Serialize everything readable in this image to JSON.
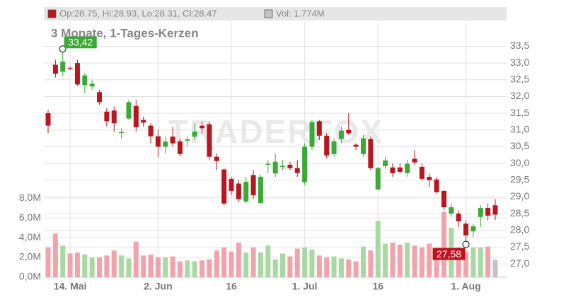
{
  "chart_data": {
    "type": "candlestick",
    "title": "3 Monate, 1-Tages-Kerzen",
    "legend": {
      "ohlc_label": "Op:28.75, Hi:28.93, Lo:28.31, Cl:28.47",
      "volume_label": "Vol: 1.774M"
    },
    "watermark": "TRADERFOX",
    "categories": [
      null,
      null,
      null,
      "14. Mai",
      null,
      null,
      null,
      null,
      null,
      null,
      null,
      null,
      null,
      null,
      null,
      "2. Jun",
      null,
      null,
      null,
      null,
      null,
      null,
      null,
      null,
      null,
      "16",
      null,
      null,
      null,
      null,
      null,
      null,
      null,
      null,
      null,
      "1. Jul",
      null,
      null,
      null,
      null,
      null,
      null,
      null,
      null,
      null,
      "16",
      null,
      null,
      null,
      null,
      null,
      null,
      null,
      null,
      null,
      null,
      null,
      "1. Aug",
      null,
      null,
      null,
      null
    ],
    "open": [
      31.5,
      32.95,
      32.74,
      32.85,
      33.0,
      32.34,
      32.3,
      32.13,
      31.55,
      31.58,
      30.92,
      31.34,
      31.72,
      31.3,
      31.13,
      30.81,
      30.5,
      30.8,
      30.66,
      30.68,
      30.8,
      31.13,
      31.17,
      30.2,
      29.82,
      29.54,
      29.4,
      28.86,
      29.65,
      28.82,
      29.97,
      29.7,
      29.9,
      29.96,
      29.86,
      29.44,
      30.5,
      31.26,
      30.83,
      30.28,
      30.73,
      31.0,
      30.56,
      30.28,
      30.73,
      29.22,
      29.92,
      29.88,
      29.88,
      29.71,
      30.14,
      29.9,
      29.6,
      29.52,
      29.18,
      28.5,
      28.5,
      28.2,
      27.97,
      28.4,
      28.67,
      28.75
    ],
    "high": [
      31.6,
      33.1,
      33.42,
      32.9,
      33.1,
      32.7,
      32.5,
      32.2,
      31.65,
      31.7,
      31.05,
      31.9,
      31.9,
      31.4,
      31.2,
      31.0,
      30.8,
      31.1,
      30.75,
      30.8,
      31.2,
      31.25,
      31.25,
      30.3,
      29.85,
      29.6,
      29.5,
      29.6,
      29.8,
      29.65,
      30.1,
      30.3,
      30.1,
      30.05,
      30.1,
      30.6,
      31.3,
      31.3,
      30.9,
      30.75,
      31.1,
      31.5,
      30.6,
      30.85,
      30.8,
      29.9,
      30.2,
      30.0,
      30.0,
      30.1,
      30.4,
      30.0,
      29.7,
      29.6,
      29.2,
      28.8,
      28.6,
      28.3,
      28.2,
      28.75,
      28.8,
      28.93
    ],
    "low": [
      30.9,
      32.57,
      32.6,
      32.8,
      32.32,
      32.1,
      32.2,
      31.75,
      31.1,
      30.95,
      30.75,
      31.3,
      30.95,
      31.1,
      30.6,
      30.2,
      30.3,
      30.5,
      30.2,
      30.5,
      30.7,
      30.9,
      30.1,
      29.8,
      28.75,
      29.05,
      28.85,
      28.8,
      28.95,
      28.8,
      29.7,
      29.6,
      29.8,
      29.8,
      29.6,
      29.35,
      30.4,
      30.7,
      30.15,
      30.2,
      30.6,
      30.85,
      30.4,
      30.2,
      29.8,
      29.2,
      29.85,
      29.6,
      29.7,
      29.6,
      29.95,
      29.5,
      29.3,
      29.1,
      28.6,
      28.4,
      28.1,
      27.58,
      27.8,
      28.1,
      28.3,
      28.31
    ],
    "close": [
      31.13,
      32.68,
      33.04,
      32.82,
      32.36,
      32.63,
      32.38,
      31.83,
      31.26,
      31.2,
      30.94,
      31.83,
      31.08,
      31.22,
      30.81,
      30.5,
      30.65,
      30.6,
      30.28,
      30.72,
      30.95,
      31.05,
      30.2,
      30.07,
      28.8,
      29.18,
      28.93,
      29.45,
      29.05,
      29.6,
      29.99,
      30.05,
      29.93,
      29.86,
      29.71,
      30.5,
      31.24,
      30.83,
      30.24,
      30.66,
      30.98,
      30.9,
      30.5,
      30.75,
      29.86,
      29.86,
      30.09,
      29.71,
      29.75,
      29.99,
      30.03,
      29.54,
      29.5,
      29.14,
      28.69,
      28.69,
      28.27,
      27.85,
      28.12,
      28.67,
      28.44,
      28.47
    ],
    "volume": [
      3.0,
      4.4,
      3.2,
      2.4,
      2.5,
      2.3,
      2.0,
      2.0,
      2.2,
      2.7,
      2.2,
      1.9,
      3.6,
      2.2,
      2.3,
      2.0,
      2.0,
      2.1,
      1.6,
      1.7,
      1.6,
      1.7,
      1.8,
      2.7,
      3.0,
      2.6,
      3.5,
      2.5,
      3.0,
      2.5,
      3.2,
      1.8,
      2.4,
      2.1,
      2.9,
      3.0,
      2.8,
      2.2,
      2.0,
      2.1,
      1.9,
      1.8,
      1.6,
      3.1,
      2.7,
      5.7,
      3.4,
      3.5,
      3.3,
      3.5,
      3.2,
      3.0,
      3.4,
      2.6,
      6.6,
      5.0,
      3.0,
      2.6,
      3.0,
      3.0,
      3.1,
      1.774
    ],
    "annotations": [
      {
        "label": "33,42",
        "value": 33.42,
        "color": "#3aaa35"
      },
      {
        "label": "27,58",
        "value": 27.58,
        "color": "#c0121c"
      }
    ],
    "up_color": "#3aaa35",
    "down_color": "#b8171f",
    "volume_up_color": "#a9d9a2",
    "volume_down_color": "#f0a3ab",
    "last_color": "#c4c4c4",
    "ylim": [
      26.6,
      34.25
    ],
    "yticks": [
      {
        "value": 27.0,
        "label": "27,0"
      },
      {
        "value": 27.5,
        "label": "27,5"
      },
      {
        "value": 28.0,
        "label": "28,0"
      },
      {
        "value": 28.5,
        "label": "28,5"
      },
      {
        "value": 29.0,
        "label": "29,0"
      },
      {
        "value": 29.5,
        "label": "29,5"
      },
      {
        "value": 30.0,
        "label": "30,0"
      },
      {
        "value": 30.5,
        "label": "30,5"
      },
      {
        "value": 31.0,
        "label": "31,0"
      },
      {
        "value": 31.5,
        "label": "31,5"
      },
      {
        "value": 32.0,
        "label": "32,0"
      },
      {
        "value": 32.5,
        "label": "32,5"
      },
      {
        "value": 33.0,
        "label": "33,0"
      },
      {
        "value": 33.5,
        "label": "33,5"
      }
    ],
    "y2lim": [
      0,
      25.9
    ],
    "y2ticks": [
      {
        "value": 0,
        "label": "0,0M"
      },
      {
        "value": 2,
        "label": "2,0M"
      },
      {
        "value": 4,
        "label": "4,0M"
      },
      {
        "value": 6,
        "label": "6,0M"
      },
      {
        "value": 8,
        "label": "8,0M"
      }
    ],
    "grid": true
  }
}
